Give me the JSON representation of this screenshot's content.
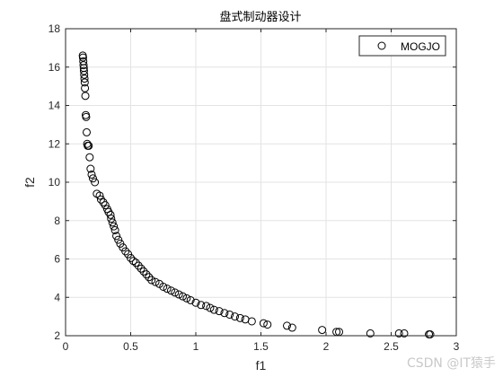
{
  "chart_data": {
    "type": "scatter",
    "title": "盘式制动器设计",
    "xlabel": "f1",
    "ylabel": "f2",
    "xlim": [
      0,
      3
    ],
    "ylim": [
      2,
      18
    ],
    "xticks": [
      0,
      0.5,
      1,
      1.5,
      2,
      2.5,
      3
    ],
    "yticks": [
      2,
      4,
      6,
      8,
      10,
      12,
      14,
      16,
      18
    ],
    "xtick_labels": [
      "0",
      "0.5",
      "1",
      "1.5",
      "2",
      "2.5",
      "3"
    ],
    "ytick_labels": [
      "2",
      "4",
      "6",
      "8",
      "10",
      "12",
      "14",
      "16",
      "18"
    ],
    "grid": true,
    "legend_position": "top-right",
    "marker": "open-circle",
    "color": "#000000",
    "series": [
      {
        "name": "MOGJO",
        "x": [
          0.132,
          0.134,
          0.136,
          0.138,
          0.14,
          0.141,
          0.143,
          0.145,
          0.147,
          0.149,
          0.152,
          0.155,
          0.158,
          0.162,
          0.166,
          0.17,
          0.178,
          0.185,
          0.192,
          0.2,
          0.21,
          0.225,
          0.24,
          0.262,
          0.272,
          0.29,
          0.305,
          0.32,
          0.33,
          0.345,
          0.35,
          0.36,
          0.37,
          0.38,
          0.39,
          0.405,
          0.42,
          0.44,
          0.46,
          0.48,
          0.5,
          0.52,
          0.54,
          0.56,
          0.58,
          0.6,
          0.62,
          0.64,
          0.66,
          0.69,
          0.72,
          0.75,
          0.78,
          0.81,
          0.84,
          0.87,
          0.9,
          0.93,
          0.96,
          1.0,
          1.04,
          1.08,
          1.11,
          1.14,
          1.18,
          1.22,
          1.26,
          1.3,
          1.34,
          1.38,
          1.43,
          1.52,
          1.55,
          1.7,
          1.74,
          1.97,
          2.08,
          2.1,
          2.34,
          2.56,
          2.6,
          2.79,
          2.8
        ],
        "y": [
          16.6,
          16.5,
          16.3,
          16.1,
          15.95,
          15.8,
          15.6,
          15.4,
          15.2,
          14.9,
          14.5,
          13.5,
          13.4,
          12.6,
          12.0,
          11.9,
          11.9,
          11.3,
          10.7,
          10.4,
          10.2,
          10.0,
          9.4,
          9.3,
          9.1,
          8.95,
          8.8,
          8.6,
          8.45,
          8.3,
          8.1,
          7.9,
          7.7,
          7.5,
          7.2,
          7.0,
          6.8,
          6.6,
          6.4,
          6.25,
          6.05,
          5.9,
          5.8,
          5.65,
          5.5,
          5.35,
          5.2,
          5.05,
          4.9,
          4.8,
          4.7,
          4.55,
          4.45,
          4.35,
          4.25,
          4.15,
          4.05,
          3.95,
          3.85,
          3.72,
          3.6,
          3.55,
          3.45,
          3.35,
          3.28,
          3.18,
          3.1,
          3.0,
          2.92,
          2.85,
          2.75,
          2.65,
          2.58,
          2.52,
          2.42,
          2.3,
          2.2,
          2.2,
          2.12,
          2.12,
          2.12,
          2.07,
          2.07
        ]
      }
    ]
  },
  "watermark": "CSDN @IT猿手"
}
